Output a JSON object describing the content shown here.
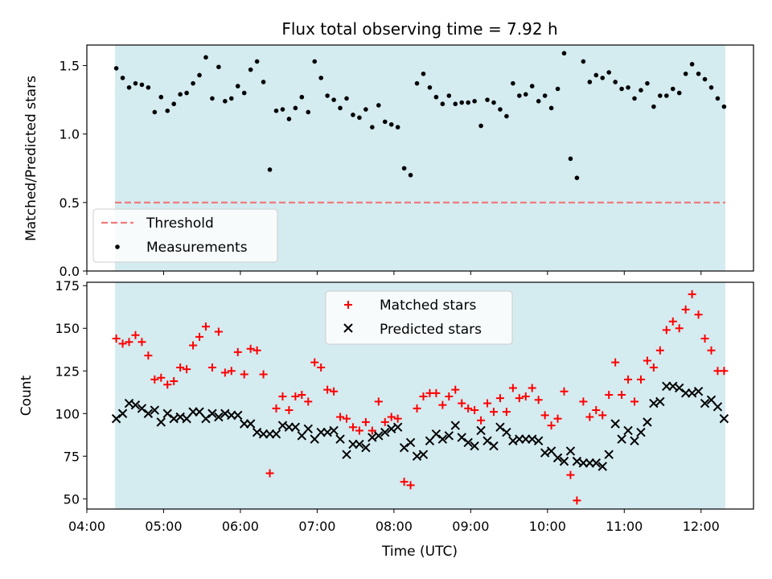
{
  "title": "Flux total observing time = 7.92 h",
  "colors": {
    "shade": "#d4ebf0",
    "threshold": "#f07c7c",
    "matched": "#ff0000",
    "predicted": "#000000",
    "measure": "#000000"
  },
  "chart_data": [
    {
      "type": "scatter",
      "ylabel": "Matched/Predicted stars",
      "ylim": [
        0,
        1.65
      ],
      "yticks": [
        "0.0",
        "0.5",
        "1.0",
        "1.5"
      ],
      "threshold": 0.5,
      "legend": {
        "placement": "lower-left",
        "entries": [
          "Threshold",
          "Measurements"
        ]
      },
      "x": [
        "04:23",
        "04:28",
        "04:33",
        "04:38",
        "04:43",
        "04:48",
        "04:53",
        "04:58",
        "05:03",
        "05:08",
        "05:13",
        "05:18",
        "05:23",
        "05:28",
        "05:33",
        "05:38",
        "05:43",
        "05:48",
        "05:53",
        "05:58",
        "06:03",
        "06:08",
        "06:13",
        "06:18",
        "06:23",
        "06:28",
        "06:33",
        "06:38",
        "06:43",
        "06:48",
        "06:53",
        "06:58",
        "07:03",
        "07:08",
        "07:13",
        "07:18",
        "07:23",
        "07:28",
        "07:33",
        "07:38",
        "07:43",
        "07:48",
        "07:53",
        "07:58",
        "08:03",
        "08:08",
        "08:13",
        "08:18",
        "08:23",
        "08:28",
        "08:33",
        "08:38",
        "08:43",
        "08:48",
        "08:53",
        "08:58",
        "09:03",
        "09:08",
        "09:13",
        "09:18",
        "09:23",
        "09:28",
        "09:33",
        "09:38",
        "09:43",
        "09:48",
        "09:53",
        "09:58",
        "10:03",
        "10:08",
        "10:13",
        "10:18",
        "10:23",
        "10:28",
        "10:33",
        "10:38",
        "10:43",
        "10:48",
        "10:53",
        "10:58",
        "11:03",
        "11:08",
        "11:13",
        "11:18",
        "11:23",
        "11:28",
        "11:33",
        "11:38",
        "11:43",
        "11:48",
        "11:53",
        "11:58",
        "12:03",
        "12:08",
        "12:13",
        "12:18"
      ],
      "series": [
        {
          "values": [
            1.48,
            1.41,
            1.34,
            1.37,
            1.36,
            1.34,
            1.16,
            1.27,
            1.17,
            1.22,
            1.29,
            1.3,
            1.37,
            1.43,
            1.56,
            1.26,
            1.49,
            1.24,
            1.26,
            1.35,
            1.3,
            1.47,
            1.53,
            1.38,
            0.74,
            1.17,
            1.18,
            1.11,
            1.19,
            1.27,
            1.16,
            1.53,
            1.41,
            1.28,
            1.25,
            1.19,
            1.26,
            1.14,
            1.12,
            1.18,
            1.05,
            1.21,
            1.09,
            1.07,
            1.05,
            0.75,
            0.7,
            1.37,
            1.44,
            1.34,
            1.27,
            1.22,
            1.28,
            1.22,
            1.23,
            1.23,
            1.24,
            1.06,
            1.25,
            1.23,
            1.18,
            1.13,
            1.37,
            1.28,
            1.29,
            1.35,
            1.24,
            1.28,
            1.19,
            1.33,
            1.59,
            0.82,
            0.68,
            1.53,
            1.38,
            1.43,
            1.41,
            1.45,
            1.38,
            1.33,
            1.34,
            1.26,
            1.32,
            1.37,
            1.2,
            1.28,
            1.28,
            1.33,
            1.3,
            1.44,
            1.51,
            1.44,
            1.4,
            1.34,
            1.26,
            1.2
          ]
        }
      ]
    },
    {
      "type": "scatter",
      "ylabel": "Count",
      "xlabel": "Time (UTC)",
      "ylim": [
        44,
        177
      ],
      "yticks": [
        "50",
        "75",
        "100",
        "125",
        "150",
        "175"
      ],
      "xticks": [
        "04:00",
        "05:00",
        "06:00",
        "07:00",
        "08:00",
        "09:00",
        "10:00",
        "11:00",
        "12:00"
      ],
      "legend": {
        "placement": "upper-center",
        "entries": [
          "Matched stars",
          "Predicted stars"
        ]
      },
      "x": [
        "04:23",
        "04:28",
        "04:33",
        "04:38",
        "04:43",
        "04:48",
        "04:53",
        "04:58",
        "05:03",
        "05:08",
        "05:13",
        "05:18",
        "05:23",
        "05:28",
        "05:33",
        "05:38",
        "05:43",
        "05:48",
        "05:53",
        "05:58",
        "06:03",
        "06:08",
        "06:13",
        "06:18",
        "06:23",
        "06:28",
        "06:33",
        "06:38",
        "06:43",
        "06:48",
        "06:53",
        "06:58",
        "07:03",
        "07:08",
        "07:13",
        "07:18",
        "07:23",
        "07:28",
        "07:33",
        "07:38",
        "07:43",
        "07:48",
        "07:53",
        "07:58",
        "08:03",
        "08:08",
        "08:13",
        "08:18",
        "08:23",
        "08:28",
        "08:33",
        "08:38",
        "08:43",
        "08:48",
        "08:53",
        "08:58",
        "09:03",
        "09:08",
        "09:13",
        "09:18",
        "09:23",
        "09:28",
        "09:33",
        "09:38",
        "09:43",
        "09:48",
        "09:53",
        "09:58",
        "10:03",
        "10:08",
        "10:13",
        "10:18",
        "10:23",
        "10:28",
        "10:33",
        "10:38",
        "10:43",
        "10:48",
        "10:53",
        "10:58",
        "11:03",
        "11:08",
        "11:13",
        "11:18",
        "11:23",
        "11:28",
        "11:33",
        "11:38",
        "11:43",
        "11:48",
        "11:53",
        "11:58",
        "12:03",
        "12:08",
        "12:13",
        "12:18"
      ],
      "series": [
        {
          "name": "Matched stars",
          "values": [
            144,
            141,
            142,
            146,
            142,
            134,
            120,
            121,
            117,
            119,
            127,
            126,
            140,
            145,
            151,
            127,
            148,
            124,
            125,
            136,
            123,
            138,
            137,
            123,
            65,
            103,
            110,
            102,
            110,
            111,
            107,
            130,
            127,
            114,
            113,
            98,
            97,
            92,
            90,
            95,
            90,
            107,
            95,
            98,
            97,
            60,
            58,
            103,
            110,
            112,
            112,
            105,
            110,
            114,
            106,
            103,
            102,
            96,
            106,
            101,
            109,
            101,
            115,
            109,
            110,
            115,
            108,
            99,
            93,
            97,
            113,
            64,
            49,
            107,
            98,
            102,
            99,
            111,
            130,
            111,
            120,
            107,
            120,
            131,
            127,
            137,
            149,
            154,
            150,
            161,
            170,
            158,
            144,
            137,
            125,
            125
          ]
        },
        {
          "name": "Predicted stars",
          "values": [
            97,
            100,
            106,
            105,
            103,
            100,
            102,
            95,
            100,
            97,
            98,
            97,
            101,
            101,
            97,
            100,
            98,
            100,
            99,
            99,
            94,
            94,
            89,
            88,
            88,
            88,
            93,
            92,
            92,
            87,
            91,
            85,
            89,
            89,
            90,
            85,
            76,
            82,
            82,
            80,
            86,
            87,
            89,
            91,
            92,
            80,
            83,
            75,
            76,
            84,
            88,
            85,
            87,
            93,
            86,
            83,
            81,
            90,
            84,
            81,
            92,
            89,
            84,
            85,
            85,
            85,
            84,
            77,
            78,
            74,
            72,
            78,
            72,
            71,
            71,
            71,
            69,
            76,
            94,
            85,
            90,
            84,
            89,
            95,
            106,
            107,
            116,
            116,
            115,
            112,
            112,
            113,
            106,
            108,
            104,
            97
          ]
        }
      ]
    }
  ]
}
